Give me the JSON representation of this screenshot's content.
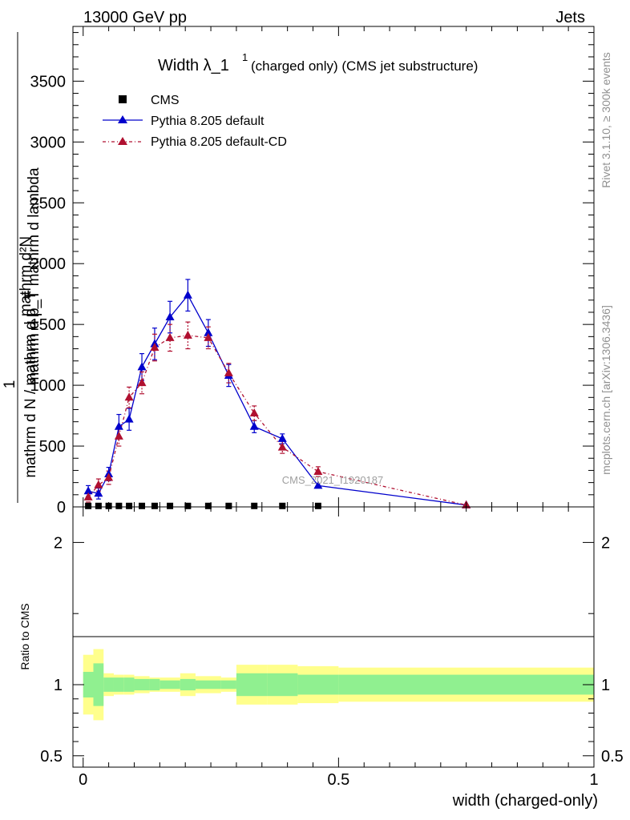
{
  "header": {
    "left": "13000 GeV pp",
    "right": "Jets"
  },
  "side_labels": {
    "rivet": "Rivet 3.1.10, ≥ 300k events",
    "mcplots": "mcplots.cern.ch [arXiv:1306.3436]"
  },
  "watermark": "CMS_2021_I1920187",
  "chart_data": {
    "type": "line",
    "title_main": "Width λ_1",
    "title_sup": "1",
    "title_sub": "(charged only) (CMS jet substructure)",
    "ylabel_parts": [
      "1",
      "mathrm d N / mathrm d p_T",
      "mathrm d²N",
      "mathrm d p_T mathrm d lambda"
    ],
    "ylabel_upper_line1": "mathrm d²N",
    "ylabel_upper_line2": "mathrm d p_T mathrm d lambda",
    "ylabel_lower_line1": "1",
    "ylabel_lower_line2": "mathrm d N / mathrm d p_T",
    "xlabel": "width (charged-only)",
    "ratio_ylabel": "Ratio to CMS",
    "xlim": [
      -0.02,
      1.0
    ],
    "ylim": [
      0,
      3950
    ],
    "ratio_ylim": [
      0.42,
      2.25
    ],
    "x_ticks": [
      {
        "value": 0,
        "label": "0"
      },
      {
        "value": 0.5,
        "label": "0.5"
      },
      {
        "value": 1,
        "label": "1"
      }
    ],
    "y_ticks": [
      {
        "value": 0,
        "label": "0"
      },
      {
        "value": 500,
        "label": "500"
      },
      {
        "value": 1000,
        "label": "1000"
      },
      {
        "value": 1500,
        "label": "1500"
      },
      {
        "value": 2000,
        "label": "2000"
      },
      {
        "value": 2500,
        "label": "2500"
      },
      {
        "value": 3000,
        "label": "3000"
      },
      {
        "value": 3500,
        "label": "3500"
      }
    ],
    "ratio_ticks": [
      {
        "value": 0.5,
        "label": "0.5"
      },
      {
        "value": 1,
        "label": "1"
      },
      {
        "value": 2,
        "label": "2"
      }
    ],
    "legend": {
      "cms": "CMS",
      "pythia_default": "Pythia 8.205 default",
      "pythia_cd": "Pythia 8.205 default-CD"
    },
    "series": [
      {
        "name": "CMS",
        "color": "#000000",
        "x": [
          0.01,
          0.03,
          0.05,
          0.07,
          0.09,
          0.115,
          0.14,
          0.17,
          0.205,
          0.245,
          0.285,
          0.335,
          0.39,
          0.46
        ],
        "values": [
          8,
          8,
          8,
          8,
          8,
          8,
          8,
          8,
          8,
          8,
          8,
          8,
          8,
          8
        ]
      },
      {
        "name": "Pythia 8.205 default",
        "color": "#0000cc",
        "x": [
          0.01,
          0.03,
          0.05,
          0.07,
          0.09,
          0.115,
          0.14,
          0.17,
          0.205,
          0.245,
          0.285,
          0.335,
          0.39,
          0.46,
          0.75
        ],
        "values": [
          130,
          110,
          270,
          660,
          720,
          1150,
          1340,
          1560,
          1740,
          1430,
          1080,
          660,
          560,
          175,
          15
        ],
        "errors": [
          45,
          45,
          55,
          100,
          90,
          110,
          130,
          130,
          130,
          110,
          90,
          50,
          40,
          0,
          0
        ]
      },
      {
        "name": "Pythia 8.205 default-CD",
        "color": "#b01030",
        "x": [
          0.01,
          0.03,
          0.05,
          0.07,
          0.09,
          0.115,
          0.14,
          0.17,
          0.205,
          0.245,
          0.285,
          0.335,
          0.39,
          0.46,
          0.75
        ],
        "values": [
          80,
          180,
          240,
          580,
          900,
          1020,
          1310,
          1390,
          1410,
          1390,
          1100,
          770,
          490,
          290,
          15
        ],
        "errors": [
          40,
          50,
          55,
          80,
          85,
          90,
          110,
          110,
          110,
          90,
          80,
          60,
          50,
          40,
          0
        ]
      }
    ],
    "ratio_bands": {
      "edges": [
        0.0,
        0.02,
        0.04,
        0.06,
        0.08,
        0.1,
        0.13,
        0.15,
        0.19,
        0.22,
        0.27,
        0.3,
        0.36,
        0.42,
        0.5,
        1.0
      ],
      "green": [
        0.09,
        0.15,
        0.05,
        0.05,
        0.05,
        0.04,
        0.04,
        0.03,
        0.04,
        0.03,
        0.03,
        0.08,
        0.08,
        0.07,
        0.07
      ],
      "yellow": [
        0.21,
        0.25,
        0.08,
        0.07,
        0.07,
        0.06,
        0.05,
        0.05,
        0.08,
        0.06,
        0.05,
        0.14,
        0.14,
        0.13,
        0.12
      ]
    }
  }
}
